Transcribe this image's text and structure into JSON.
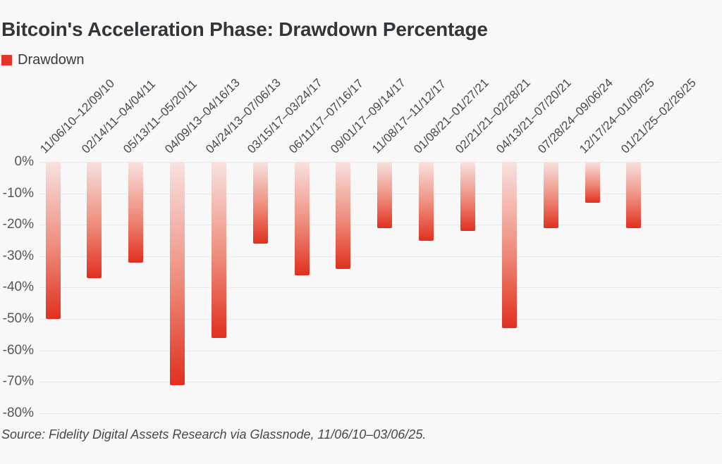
{
  "header": {
    "title": "Bitcoin's Acceleration Phase: Drawdown Percentage",
    "legend": {
      "label": "Drawdown",
      "color": "#e5352a"
    }
  },
  "chart_data": {
    "type": "bar",
    "title": "Bitcoin's Acceleration Phase: Drawdown Percentage",
    "series_name": "Drawdown",
    "categories": [
      "11/06/10–12/09/10",
      "02/14/11–04/04/11",
      "05/13/11–05/20/11",
      "04/09/13–04/16/13",
      "04/24/13–07/06/13",
      "03/15/17–03/24/17",
      "06/11/17–07/16/17",
      "09/01/17–09/14/17",
      "11/08/17–11/12/17",
      "01/08/21–01/27/21",
      "02/21/21–02/28/21",
      "04/13/21–07/20/21",
      "07/28/24–09/06/24",
      "12/17/24–01/09/25",
      "01/21/25–02/26/25"
    ],
    "values": [
      -50,
      -37,
      -32,
      -71,
      -56,
      -26,
      -36,
      -34,
      -21,
      -25,
      -22,
      -53,
      -21,
      -13,
      -21
    ],
    "unit": "%",
    "xlabel": "",
    "ylabel": "",
    "y_ticks": [
      "0%",
      "-10%",
      "-20%",
      "-30%",
      "-40%",
      "-50%",
      "-60%",
      "-70%",
      "-80%"
    ],
    "ylim": [
      -80,
      0
    ],
    "grid": true,
    "legend_position": "top-left",
    "bar_gradient": [
      "#f8e2e0",
      "#ee8a79",
      "#e1301f"
    ],
    "background": "#f8f8f8",
    "gridline_color": "#e9e9e9"
  },
  "footer": {
    "source": "Source: Fidelity Digital Assets Research via Glassnode, 11/06/10–03/06/25."
  }
}
